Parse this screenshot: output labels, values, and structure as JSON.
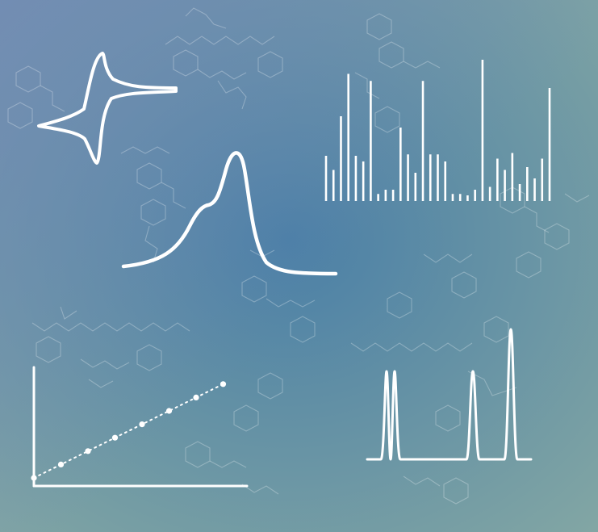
{
  "colors": {
    "bg_top_left": "#6f86b8",
    "bg_center": "#4a7fa6",
    "bg_bottom_right": "#82a6a4",
    "line": "#ffffff",
    "molecule": "rgba(255,255,255,0.28)"
  },
  "panels": {
    "cyclic_voltammogram": {
      "icon": "cyclic-voltammogram-curve"
    },
    "peak_curve": {
      "icon": "asymmetric-peak-curve"
    },
    "mass_spectrum": {
      "icon": "mass-spectrum-bars",
      "relative_intensities": [
        0.32,
        0.22,
        0.6,
        0.9,
        0.32,
        0.28,
        0.85,
        0.05,
        0.08,
        0.08,
        0.52,
        0.33,
        0.2,
        0.85,
        0.33,
        0.33,
        0.28,
        0.05,
        0.05,
        0.04,
        0.08,
        1.0,
        0.1,
        0.3,
        0.22,
        0.34,
        0.12,
        0.24,
        0.16,
        0.3,
        0.8
      ]
    },
    "calibration_plot": {
      "icon": "linear-calibration-points",
      "points": [
        [
          0,
          0
        ],
        [
          1,
          1
        ],
        [
          2,
          2
        ],
        [
          3,
          3
        ],
        [
          4,
          4
        ],
        [
          5,
          5
        ],
        [
          6,
          6
        ],
        [
          7,
          7
        ]
      ]
    },
    "chromatogram": {
      "icon": "chromatogram-peaks"
    }
  },
  "decorations": {
    "icon": "molecular-structure-lines"
  }
}
